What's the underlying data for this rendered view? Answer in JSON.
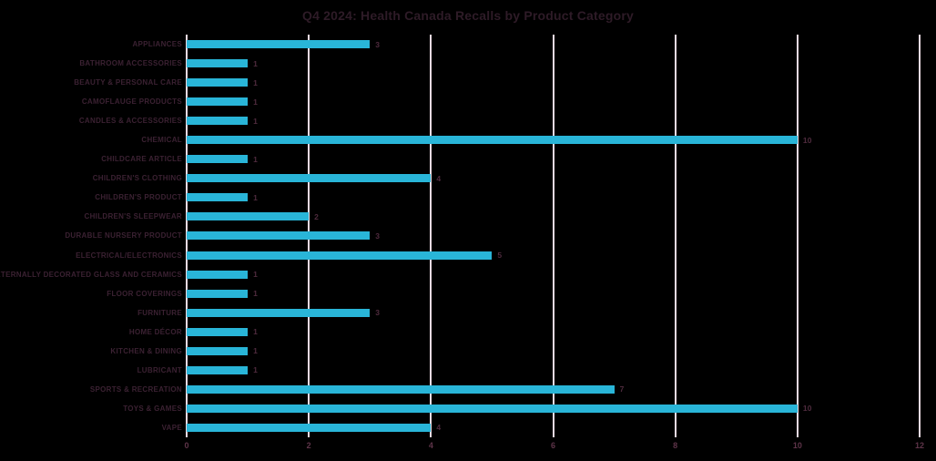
{
  "title": "Q4 2024: Health Canada Recalls by Product Category",
  "chart_data": {
    "type": "bar",
    "orientation": "horizontal",
    "title": "Q4 2024: Health Canada Recalls by Product Category",
    "categories": [
      "APPLIANCES",
      "BATHROOM ACCESSORIES",
      "BEAUTY & PERSONAL CARE",
      "CAMOFLAUGE PRODUCTS",
      "CANDLES & ACCESSORIES",
      "CHEMICAL",
      "CHILDCARE ARTICLE",
      "CHILDREN'S CLOTHING",
      "CHILDREN'S PRODUCT",
      "CHILDREN'S SLEEPWEAR",
      "DURABLE NURSERY PRODUCT",
      "ELECTRICAL/ELECTRONICS",
      "EXTERNALLY DECORATED GLASS AND CERAMICS",
      "FLOOR COVERINGS",
      "FURNITURE",
      "HOME DÉCOR",
      "KITCHEN & DINING",
      "LUBRICANT",
      "SPORTS & RECREATION",
      "TOYS & GAMES",
      "VAPE"
    ],
    "values": [
      3,
      1,
      1,
      1,
      1,
      10,
      1,
      4,
      1,
      2,
      3,
      5,
      1,
      1,
      3,
      1,
      1,
      1,
      7,
      10,
      4
    ],
    "xlabel": "",
    "ylabel": "",
    "xlim": [
      0,
      12
    ],
    "x_ticks": [
      0,
      2,
      4,
      6,
      8,
      10,
      12
    ],
    "grid": "vertical",
    "legend": "none",
    "data_labels": true,
    "colors": {
      "background": "#000000",
      "bar": "#29B5D8",
      "gridline": "#ECDAE2",
      "title_text": "#2E1B27",
      "category_text": "#3B2132",
      "value_text": "#4F2B3E",
      "axis_text": "#5E3449"
    }
  }
}
